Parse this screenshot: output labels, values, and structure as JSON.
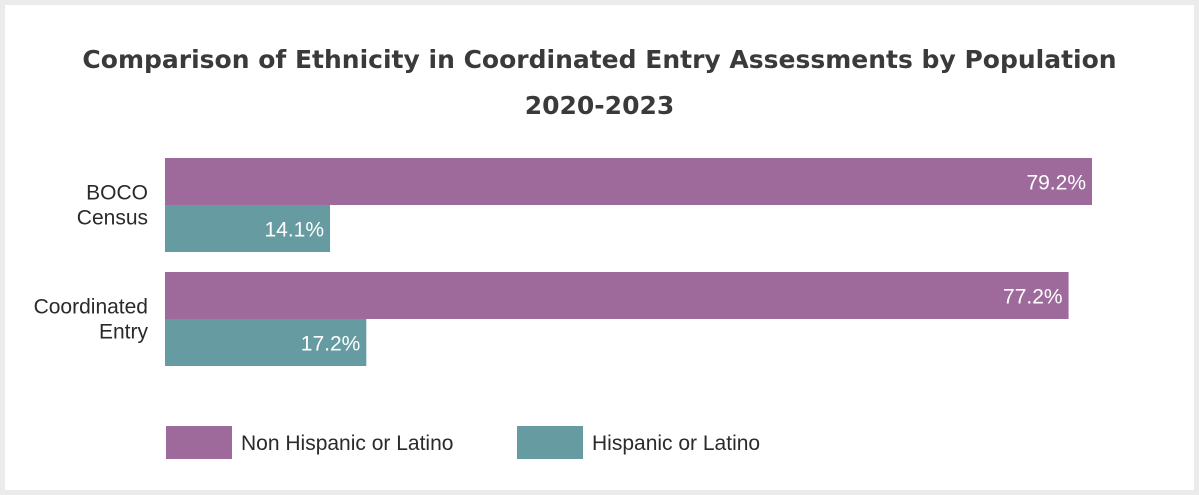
{
  "chart_data": {
    "type": "bar",
    "orientation": "horizontal",
    "title": "Comparison of Ethnicity in Coordinated Entry Assessments by Population",
    "subtitle": "2020-2023",
    "categories": [
      [
        "BOCO",
        "Census"
      ],
      [
        "Coordinated",
        "Entry"
      ]
    ],
    "series": [
      {
        "name": "Non Hispanic or Latino",
        "color": "#9e6a9b",
        "values": [
          79.2,
          77.2
        ],
        "labels": [
          "79.2%",
          "77.2%"
        ]
      },
      {
        "name": "Hispanic or Latino",
        "color": "#669ca1",
        "values": [
          14.1,
          17.2
        ],
        "labels": [
          "14.1%",
          "17.2%"
        ]
      }
    ],
    "xlim": [
      0,
      79.2
    ],
    "grid": false,
    "legend": "bottom-left"
  }
}
